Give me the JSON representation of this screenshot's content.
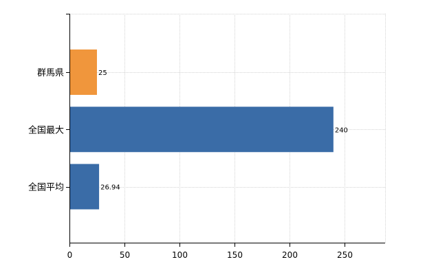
{
  "chart_data": {
    "type": "bar",
    "orientation": "horizontal",
    "categories": [
      "群馬県",
      "全国最大",
      "全国平均"
    ],
    "values": [
      25,
      240,
      26.94
    ],
    "value_labels": [
      "25",
      "240",
      "26.94"
    ],
    "bar_colors": [
      "#f0963c",
      "#3a6ca7",
      "#3a6ca7"
    ],
    "xlim": [
      0,
      287
    ],
    "xticks": [
      0,
      50,
      100,
      150,
      200,
      250
    ],
    "xtick_labels": [
      "0",
      "50",
      "100",
      "150",
      "200",
      "250"
    ],
    "grid": true,
    "title": "",
    "xlabel": "",
    "ylabel": ""
  }
}
